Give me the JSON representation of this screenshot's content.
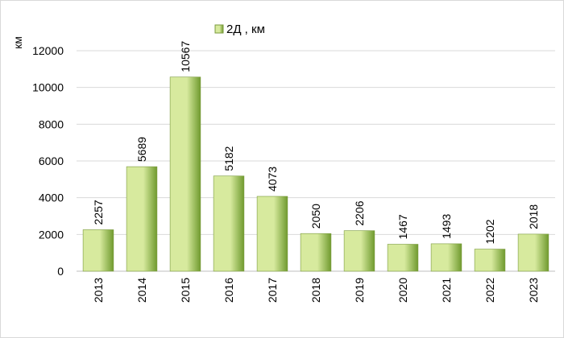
{
  "chart_data": {
    "type": "bar",
    "categories": [
      "2013",
      "2014",
      "2015",
      "2016",
      "2017",
      "2018",
      "2019",
      "2020",
      "2021",
      "2022",
      "2023"
    ],
    "series": [
      {
        "name": "2Д , км",
        "values": [
          2257,
          5689,
          10567,
          5182,
          4073,
          2050,
          2206,
          1467,
          1493,
          1202,
          2018
        ]
      }
    ],
    "ylabel": "км",
    "ylim": [
      0,
      12000
    ],
    "yticks": [
      0,
      2000,
      4000,
      6000,
      8000,
      10000,
      12000
    ],
    "grid": true,
    "legend_position": "top",
    "colors": {
      "bar_light": "#d7ea9e",
      "bar_dark": "#6f9a2e",
      "bar_edge": "#7a9a3c"
    }
  }
}
